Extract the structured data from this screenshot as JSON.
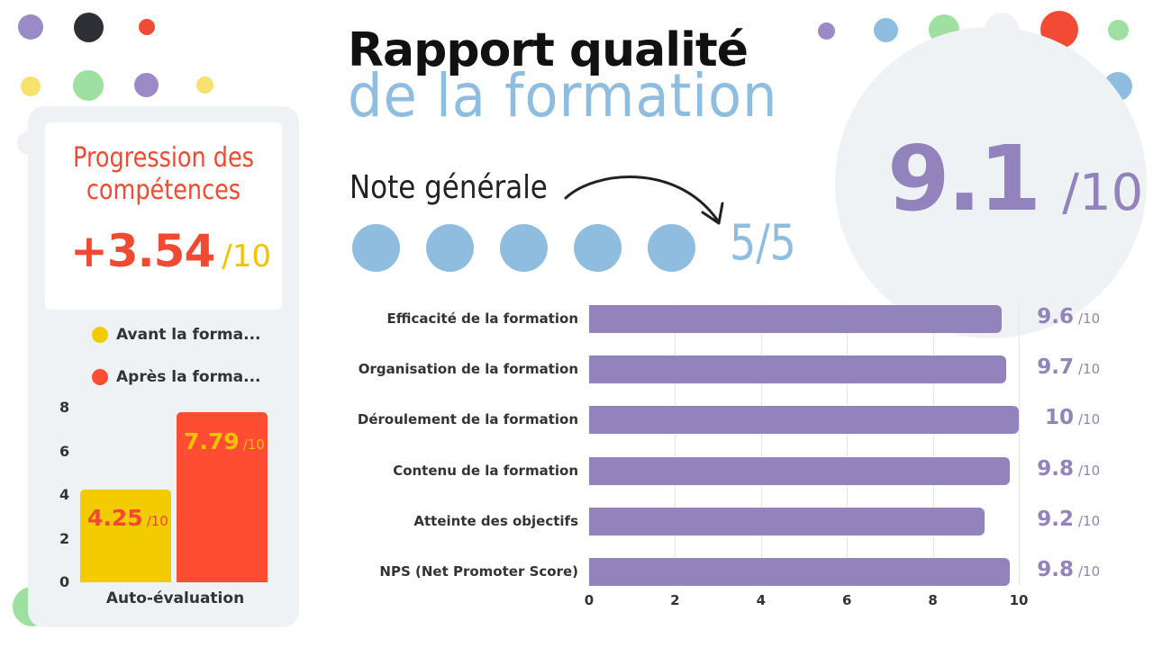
{
  "title": {
    "line1": "Rapport qualité",
    "line2": "de la formation"
  },
  "overall": {
    "value": "9.1",
    "denominator": "/10"
  },
  "note_generale": {
    "label": "Note générale",
    "rating_text": "5/5",
    "rating": 5,
    "max": 5
  },
  "progression": {
    "title_line1": "Progression des",
    "title_line2": "compétences",
    "value": "+3.54",
    "denominator": "/10"
  },
  "colors": {
    "purple": "#9283bc",
    "blue": "#8fbde0",
    "red": "#ff4d33",
    "yellow": "#f2cc00",
    "panel": "#eff2f5"
  },
  "chart_data": [
    {
      "type": "bar",
      "orientation": "vertical",
      "categories": [
        "Auto-évaluation"
      ],
      "series": [
        {
          "name": "Avant la forma...",
          "color": "#f2cc00",
          "values": [
            4.25
          ],
          "label": "4.25",
          "label_color": "#f04a32",
          "den_color": "#f04a32"
        },
        {
          "name": "Après la forma...",
          "color": "#ff4d33",
          "values": [
            7.79
          ],
          "label": "7.79",
          "label_color": "#f2c200",
          "den_color": "#f2c200"
        }
      ],
      "denominator": "/10",
      "y_ticks": [
        "8",
        "6",
        "4",
        "2",
        "0"
      ],
      "ylim": [
        0,
        8
      ],
      "legend": "top",
      "grid": false
    },
    {
      "type": "bar",
      "orientation": "horizontal",
      "categories": [
        "Efficacité de la formation",
        "Organisation de la formation",
        "Déroulement de la formation",
        "Contenu de la formation",
        "Atteinte des objectifs",
        "NPS (Net Promoter Score)"
      ],
      "values": [
        9.6,
        9.7,
        10,
        9.8,
        9.2,
        9.8
      ],
      "value_labels": [
        "9.6",
        "9.7",
        "10",
        "9.8",
        "9.2",
        "9.8"
      ],
      "denominator": "/10",
      "x_ticks": [
        "0",
        "2",
        "4",
        "6",
        "8",
        "10"
      ],
      "xlim": [
        0,
        10
      ],
      "grid": true,
      "color": "#9283bc"
    }
  ]
}
